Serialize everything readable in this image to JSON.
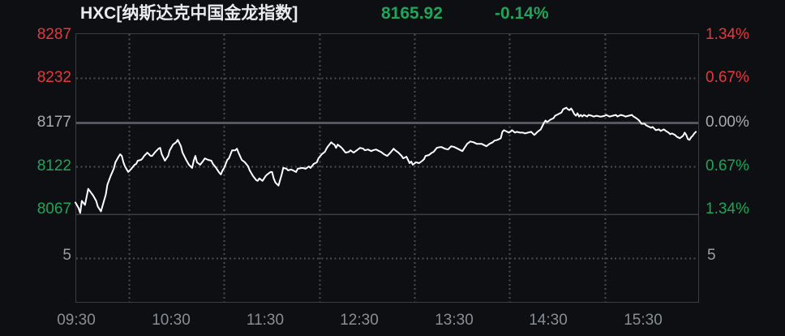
{
  "header": {
    "title": "HXC[纳斯达克中国金龙指数]",
    "last_price": "8165.92",
    "change_percent": "-0.14%"
  },
  "left_axis": {
    "price_labels": [
      {
        "text": "8287",
        "state": "up"
      },
      {
        "text": "8232",
        "state": "up"
      },
      {
        "text": "8177",
        "state": "flat"
      },
      {
        "text": "8122",
        "state": "down"
      },
      {
        "text": "8067",
        "state": "down"
      }
    ],
    "volume_label": "5"
  },
  "right_axis": {
    "percent_labels": [
      {
        "text": "1.34%",
        "state": "up"
      },
      {
        "text": "0.67%",
        "state": "up"
      },
      {
        "text": "0.00%",
        "state": "flat"
      },
      {
        "text": "0.67%",
        "state": "down"
      },
      {
        "text": "1.34%",
        "state": "down"
      }
    ],
    "volume_label": "5"
  },
  "time_axis": {
    "labels": [
      "09:30",
      "10:30",
      "11:30",
      "12:30",
      "13:30",
      "14:30",
      "15:30"
    ]
  },
  "colors": {
    "up": "#e5383f",
    "down": "#1ea55a",
    "flat": "#a8abaf",
    "time": "#8a8d91",
    "vol": "#9a9da1",
    "title": "#eaebed",
    "bg": "#0d0f12",
    "grid": "#494d52",
    "border": "#3a3e43",
    "prev": "#54585e",
    "line": "#ffffff"
  },
  "chart_data": {
    "type": "line",
    "title": "HXC[纳斯达克中国金龙指数]",
    "last": 8165.92,
    "change_percent": -0.14,
    "prev_close": 8177,
    "price_ticks": [
      8287,
      8232,
      8177,
      8122,
      8067
    ],
    "percent_ticks": [
      "1.34%",
      "0.67%",
      "0.00%",
      "0.67%",
      "1.34%"
    ],
    "time_ticks": [
      "09:30",
      "10:30",
      "11:30",
      "12:30",
      "13:30",
      "14:30",
      "15:30"
    ],
    "volume_tick": "5",
    "volume_bars": [],
    "x_unit": "minutes since 09:30",
    "xlim": [
      0,
      390
    ],
    "ylim": [
      8067,
      8287
    ],
    "grid": true,
    "series": [
      {
        "name": "price",
        "points": [
          [
            0,
            8078
          ],
          [
            2,
            8071
          ],
          [
            3,
            8065
          ],
          [
            4,
            8080
          ],
          [
            6,
            8075
          ],
          [
            8,
            8095
          ],
          [
            11,
            8087
          ],
          [
            13,
            8080
          ],
          [
            14,
            8073
          ],
          [
            16,
            8067
          ],
          [
            18,
            8081
          ],
          [
            19,
            8088
          ],
          [
            20,
            8100
          ],
          [
            22,
            8111
          ],
          [
            24,
            8120
          ],
          [
            25,
            8128
          ],
          [
            27,
            8135
          ],
          [
            28,
            8138
          ],
          [
            29,
            8136
          ],
          [
            30,
            8128
          ],
          [
            31,
            8123
          ],
          [
            33,
            8116
          ],
          [
            35,
            8120
          ],
          [
            37,
            8125
          ],
          [
            38,
            8126
          ],
          [
            39,
            8130
          ],
          [
            41,
            8131
          ],
          [
            42,
            8133
          ],
          [
            43,
            8136
          ],
          [
            45,
            8140
          ],
          [
            47,
            8136
          ],
          [
            48,
            8136
          ],
          [
            50,
            8141
          ],
          [
            52,
            8145
          ],
          [
            53,
            8146
          ],
          [
            54,
            8138
          ],
          [
            56,
            8130
          ],
          [
            58,
            8136
          ],
          [
            59,
            8143
          ],
          [
            61,
            8150
          ],
          [
            63,
            8153
          ],
          [
            64,
            8156
          ],
          [
            66,
            8148
          ],
          [
            67,
            8140
          ],
          [
            69,
            8132
          ],
          [
            71,
            8125
          ],
          [
            73,
            8121
          ],
          [
            74,
            8130
          ],
          [
            75,
            8136
          ],
          [
            76,
            8128
          ],
          [
            78,
            8125
          ],
          [
            80,
            8130
          ],
          [
            81,
            8133
          ],
          [
            83,
            8131
          ],
          [
            85,
            8130
          ],
          [
            86,
            8126
          ],
          [
            88,
            8121
          ],
          [
            90,
            8115
          ],
          [
            91,
            8113
          ],
          [
            92,
            8118
          ],
          [
            93,
            8121
          ],
          [
            95,
            8131
          ],
          [
            96,
            8133
          ],
          [
            97,
            8138
          ],
          [
            98,
            8143
          ],
          [
            100,
            8143
          ],
          [
            101,
            8145
          ],
          [
            102,
            8140
          ],
          [
            104,
            8131
          ],
          [
            106,
            8128
          ],
          [
            108,
            8123
          ],
          [
            109,
            8118
          ],
          [
            111,
            8111
          ],
          [
            113,
            8106
          ],
          [
            114,
            8105
          ],
          [
            115,
            8108
          ],
          [
            117,
            8105
          ],
          [
            118,
            8108
          ],
          [
            119,
            8111
          ],
          [
            120,
            8113
          ],
          [
            122,
            8116
          ],
          [
            123,
            8116
          ],
          [
            124,
            8108
          ],
          [
            125,
            8103
          ],
          [
            127,
            8099
          ],
          [
            128,
            8106
          ],
          [
            129,
            8113
          ],
          [
            130,
            8121
          ],
          [
            132,
            8120
          ],
          [
            133,
            8118
          ],
          [
            135,
            8119
          ],
          [
            138,
            8116
          ],
          [
            139,
            8120
          ],
          [
            142,
            8121
          ],
          [
            144,
            8120
          ],
          [
            146,
            8123
          ],
          [
            147,
            8121
          ],
          [
            149,
            8126
          ],
          [
            151,
            8128
          ],
          [
            152,
            8133
          ],
          [
            154,
            8138
          ],
          [
            156,
            8141
          ],
          [
            157,
            8145
          ],
          [
            158,
            8148
          ],
          [
            160,
            8153
          ],
          [
            161,
            8151
          ],
          [
            162,
            8150
          ],
          [
            163,
            8146
          ],
          [
            164,
            8150
          ],
          [
            166,
            8147
          ],
          [
            167,
            8145
          ],
          [
            169,
            8140
          ],
          [
            171,
            8141
          ],
          [
            172,
            8143
          ],
          [
            174,
            8140
          ],
          [
            176,
            8143
          ],
          [
            178,
            8146
          ],
          [
            180,
            8145
          ],
          [
            181,
            8143
          ],
          [
            183,
            8144
          ],
          [
            185,
            8142
          ],
          [
            186,
            8143
          ],
          [
            188,
            8144
          ],
          [
            190,
            8142
          ],
          [
            191,
            8141
          ],
          [
            193,
            8138
          ],
          [
            195,
            8136
          ],
          [
            196,
            8138
          ],
          [
            197,
            8140
          ],
          [
            199,
            8145
          ],
          [
            200,
            8143
          ],
          [
            202,
            8140
          ],
          [
            204,
            8136
          ],
          [
            205,
            8133
          ],
          [
            207,
            8135
          ],
          [
            209,
            8127
          ],
          [
            210,
            8129
          ],
          [
            211,
            8125
          ],
          [
            213,
            8128
          ],
          [
            215,
            8127
          ],
          [
            217,
            8130
          ],
          [
            218,
            8132
          ],
          [
            219,
            8136
          ],
          [
            221,
            8137
          ],
          [
            223,
            8140
          ],
          [
            224,
            8141
          ],
          [
            226,
            8146
          ],
          [
            228,
            8147
          ],
          [
            229,
            8147
          ],
          [
            231,
            8145
          ],
          [
            233,
            8144
          ],
          [
            234,
            8146
          ],
          [
            235,
            8148
          ],
          [
            237,
            8147
          ],
          [
            238,
            8146
          ],
          [
            240,
            8144
          ],
          [
            242,
            8142
          ],
          [
            243,
            8145
          ],
          [
            245,
            8151
          ],
          [
            247,
            8154
          ],
          [
            249,
            8153
          ],
          [
            251,
            8151
          ],
          [
            252,
            8151
          ],
          [
            254,
            8151
          ],
          [
            256,
            8149
          ],
          [
            257,
            8148
          ],
          [
            259,
            8151
          ],
          [
            261,
            8153
          ],
          [
            262,
            8155
          ],
          [
            264,
            8156
          ],
          [
            266,
            8158
          ],
          [
            267,
            8166
          ],
          [
            268,
            8168
          ],
          [
            270,
            8166
          ],
          [
            271,
            8165
          ],
          [
            272,
            8166
          ],
          [
            273,
            8168
          ],
          [
            275,
            8165
          ],
          [
            276,
            8166
          ],
          [
            278,
            8165
          ],
          [
            280,
            8165
          ],
          [
            281,
            8164
          ],
          [
            283,
            8165
          ],
          [
            285,
            8166
          ],
          [
            287,
            8162
          ],
          [
            288,
            8164
          ],
          [
            289,
            8166
          ],
          [
            291,
            8169
          ],
          [
            293,
            8177
          ],
          [
            294,
            8180
          ],
          [
            295,
            8178
          ],
          [
            297,
            8181
          ],
          [
            299,
            8183
          ],
          [
            300,
            8186
          ],
          [
            302,
            8188
          ],
          [
            304,
            8190
          ],
          [
            305,
            8194
          ],
          [
            306,
            8195
          ],
          [
            307,
            8196
          ],
          [
            308,
            8194
          ],
          [
            309,
            8193
          ],
          [
            310,
            8195
          ],
          [
            311,
            8192
          ],
          [
            312,
            8188
          ],
          [
            313,
            8186
          ],
          [
            314,
            8189
          ],
          [
            315,
            8185
          ],
          [
            316,
            8187
          ],
          [
            317,
            8185
          ],
          [
            318,
            8187
          ],
          [
            320,
            8185
          ],
          [
            321,
            8187
          ],
          [
            323,
            8186
          ],
          [
            324,
            8185
          ],
          [
            326,
            8186
          ],
          [
            328,
            8185
          ],
          [
            329,
            8185
          ],
          [
            331,
            8186
          ],
          [
            332,
            8187
          ],
          [
            334,
            8185
          ],
          [
            336,
            8186
          ],
          [
            338,
            8187
          ],
          [
            339,
            8185
          ],
          [
            341,
            8187
          ],
          [
            343,
            8186
          ],
          [
            344,
            8185
          ],
          [
            346,
            8186
          ],
          [
            348,
            8187
          ],
          [
            349,
            8185
          ],
          [
            350,
            8184
          ],
          [
            352,
            8181
          ],
          [
            353,
            8179
          ],
          [
            354,
            8176
          ],
          [
            356,
            8176
          ],
          [
            357,
            8174
          ],
          [
            358,
            8173
          ],
          [
            360,
            8171
          ],
          [
            361,
            8172
          ],
          [
            362,
            8170
          ],
          [
            363,
            8168
          ],
          [
            365,
            8169
          ],
          [
            366,
            8167
          ],
          [
            367,
            8168
          ],
          [
            368,
            8169
          ],
          [
            370,
            8166
          ],
          [
            371,
            8165
          ],
          [
            372,
            8163
          ],
          [
            373,
            8164
          ],
          [
            375,
            8162
          ],
          [
            376,
            8160
          ],
          [
            378,
            8158
          ],
          [
            380,
            8161
          ],
          [
            381,
            8165
          ],
          [
            382,
            8162
          ],
          [
            383,
            8157
          ],
          [
            384,
            8156
          ],
          [
            385,
            8159
          ],
          [
            386,
            8161
          ],
          [
            387,
            8164
          ],
          [
            388,
            8166
          ]
        ]
      }
    ]
  }
}
